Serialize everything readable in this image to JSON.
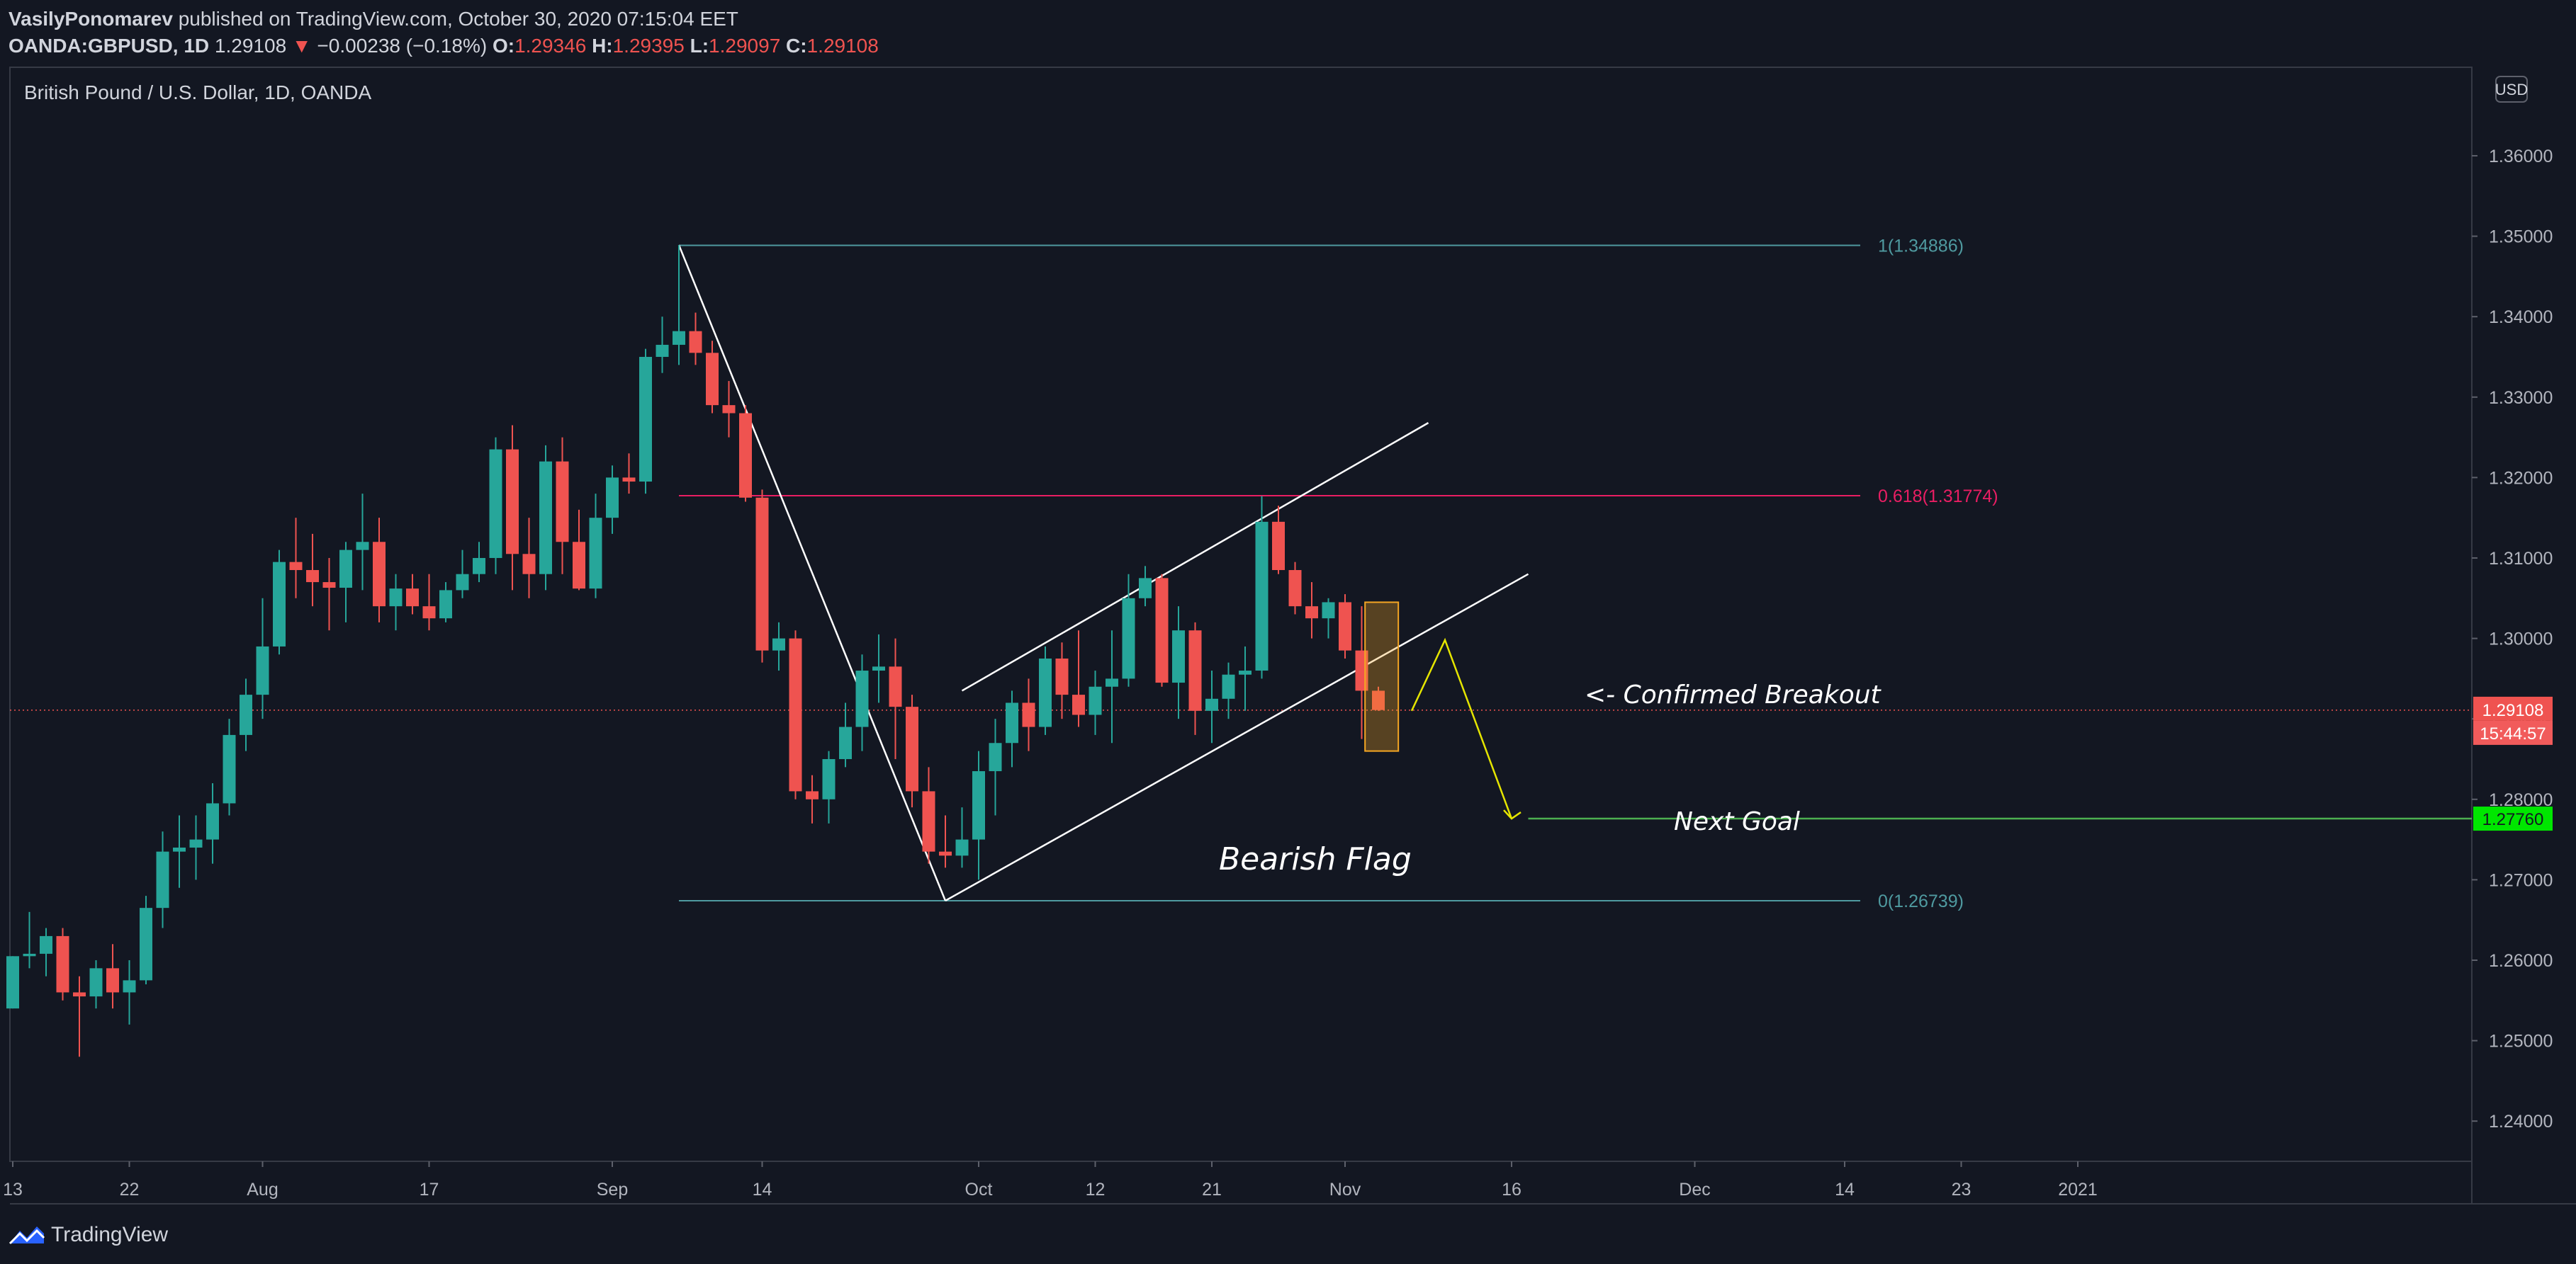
{
  "header": {
    "author": "VasilyPonomarev",
    "published_text": "published on TradingView.com, October 30, 2020 07:15:04 EET",
    "symbol": "OANDA:GBPUSD, 1D",
    "last": "1.29108",
    "change": "−0.00238 (−0.18%)",
    "o_label": "O:",
    "o_value": "1.29346",
    "h_label": "H:",
    "h_value": "1.29395",
    "l_label": "L:",
    "l_value": "1.29097",
    "c_label": "C:",
    "c_value": "1.29108"
  },
  "chart_title": "British Pound / U.S. Dollar, 1D, OANDA",
  "currency_badge": "USD",
  "footer": {
    "logo_text": "TradingView"
  },
  "colors": {
    "background": "#131722",
    "up": "#26a69a",
    "down": "#ef5350",
    "fib_teal": "#4f9aa0",
    "fib_pink": "#e91e63",
    "goal_green": "#4caf50",
    "badge_green": "#00e600",
    "arrow_yellow": "#e5e500",
    "highlight": "#f5a623"
  },
  "chart_data": {
    "type": "candlestick",
    "title": "British Pound / U.S. Dollar, 1D, OANDA",
    "ylim": [
      1.235,
      1.371
    ],
    "y_ticks": [
      "1.24000",
      "1.25000",
      "1.26000",
      "1.27000",
      "1.28000",
      "1.29000",
      "1.30000",
      "1.31000",
      "1.32000",
      "1.33000",
      "1.34000",
      "1.35000",
      "1.36000"
    ],
    "x_ticks": [
      {
        "label": "13",
        "i": 0
      },
      {
        "label": "22",
        "i": 7
      },
      {
        "label": "Aug",
        "i": 15
      },
      {
        "label": "17",
        "i": 25
      },
      {
        "label": "Sep",
        "i": 36
      },
      {
        "label": "14",
        "i": 45
      },
      {
        "label": "Oct",
        "i": 58
      },
      {
        "label": "12",
        "i": 65
      },
      {
        "label": "21",
        "i": 72
      },
      {
        "label": "Nov",
        "i": 80
      },
      {
        "label": "16",
        "i": 90
      },
      {
        "label": "Dec",
        "i": 101
      },
      {
        "label": "14",
        "i": 110
      },
      {
        "label": "23",
        "i": 117
      },
      {
        "label": "2021",
        "i": 124
      }
    ],
    "ohlc": [
      [
        1.254,
        1.2605,
        1.254,
        1.2605
      ],
      [
        1.2605,
        1.266,
        1.259,
        1.2608
      ],
      [
        1.2608,
        1.264,
        1.258,
        1.263
      ],
      [
        1.263,
        1.264,
        1.255,
        1.256
      ],
      [
        1.256,
        1.258,
        1.248,
        1.2555
      ],
      [
        1.2555,
        1.26,
        1.254,
        1.259
      ],
      [
        1.259,
        1.262,
        1.254,
        1.256
      ],
      [
        1.256,
        1.26,
        1.252,
        1.2575
      ],
      [
        1.2575,
        1.268,
        1.257,
        1.2665
      ],
      [
        1.2665,
        1.276,
        1.264,
        1.2735
      ],
      [
        1.2735,
        1.278,
        1.269,
        1.274
      ],
      [
        1.274,
        1.278,
        1.27,
        1.275
      ],
      [
        1.275,
        1.282,
        1.272,
        1.2795
      ],
      [
        1.2795,
        1.29,
        1.278,
        1.288
      ],
      [
        1.288,
        1.295,
        1.286,
        1.293
      ],
      [
        1.293,
        1.305,
        1.29,
        1.299
      ],
      [
        1.299,
        1.311,
        1.298,
        1.3095
      ],
      [
        1.3095,
        1.315,
        1.305,
        1.3085
      ],
      [
        1.3085,
        1.313,
        1.304,
        1.307
      ],
      [
        1.307,
        1.31,
        1.301,
        1.3063
      ],
      [
        1.3063,
        1.312,
        1.302,
        1.311
      ],
      [
        1.311,
        1.318,
        1.306,
        1.312
      ],
      [
        1.312,
        1.315,
        1.302,
        1.304
      ],
      [
        1.304,
        1.308,
        1.301,
        1.3062
      ],
      [
        1.3062,
        1.308,
        1.303,
        1.304
      ],
      [
        1.304,
        1.308,
        1.301,
        1.3025
      ],
      [
        1.3025,
        1.307,
        1.302,
        1.306
      ],
      [
        1.306,
        1.311,
        1.305,
        1.308
      ],
      [
        1.308,
        1.312,
        1.307,
        1.31
      ],
      [
        1.31,
        1.325,
        1.308,
        1.3235
      ],
      [
        1.3235,
        1.3265,
        1.306,
        1.3105
      ],
      [
        1.3105,
        1.315,
        1.305,
        1.308
      ],
      [
        1.308,
        1.324,
        1.306,
        1.322
      ],
      [
        1.322,
        1.325,
        1.308,
        1.312
      ],
      [
        1.312,
        1.316,
        1.306,
        1.3062
      ],
      [
        1.3062,
        1.318,
        1.305,
        1.315
      ],
      [
        1.315,
        1.3215,
        1.313,
        1.32
      ],
      [
        1.32,
        1.323,
        1.318,
        1.3195
      ],
      [
        1.3195,
        1.336,
        1.318,
        1.335
      ],
      [
        1.335,
        1.34,
        1.333,
        1.3365
      ],
      [
        1.3365,
        1.3489,
        1.334,
        1.3382
      ],
      [
        1.3382,
        1.3405,
        1.334,
        1.3355
      ],
      [
        1.3355,
        1.337,
        1.328,
        1.329
      ],
      [
        1.329,
        1.332,
        1.325,
        1.328
      ],
      [
        1.328,
        1.329,
        1.317,
        1.3175
      ],
      [
        1.3175,
        1.3185,
        1.297,
        1.2985
      ],
      [
        1.2985,
        1.302,
        1.296,
        1.3
      ],
      [
        1.3,
        1.301,
        1.28,
        1.281
      ],
      [
        1.281,
        1.283,
        1.277,
        1.28
      ],
      [
        1.28,
        1.286,
        1.277,
        1.285
      ],
      [
        1.285,
        1.292,
        1.284,
        1.289
      ],
      [
        1.289,
        1.298,
        1.286,
        1.296
      ],
      [
        1.296,
        1.3005,
        1.292,
        1.2965
      ],
      [
        1.2965,
        1.3,
        1.285,
        1.2915
      ],
      [
        1.2915,
        1.293,
        1.279,
        1.281
      ],
      [
        1.281,
        1.284,
        1.272,
        1.2735
      ],
      [
        1.2735,
        1.278,
        1.2715,
        1.273
      ],
      [
        1.273,
        1.279,
        1.2715,
        1.275
      ],
      [
        1.275,
        1.286,
        1.27,
        1.2835
      ],
      [
        1.2835,
        1.29,
        1.278,
        1.287
      ],
      [
        1.287,
        1.2935,
        1.284,
        1.292
      ],
      [
        1.292,
        1.295,
        1.286,
        1.289
      ],
      [
        1.289,
        1.299,
        1.288,
        1.2975
      ],
      [
        1.2975,
        1.2995,
        1.29,
        1.293
      ],
      [
        1.293,
        1.301,
        1.289,
        1.2905
      ],
      [
        1.2905,
        1.296,
        1.288,
        1.294
      ],
      [
        1.294,
        1.301,
        1.287,
        1.295
      ],
      [
        1.295,
        1.308,
        1.294,
        1.305
      ],
      [
        1.305,
        1.309,
        1.304,
        1.3075
      ],
      [
        1.3075,
        1.308,
        1.294,
        1.2945
      ],
      [
        1.2945,
        1.304,
        1.29,
        1.301
      ],
      [
        1.301,
        1.302,
        1.288,
        1.291
      ],
      [
        1.291,
        1.296,
        1.287,
        1.2925
      ],
      [
        1.2925,
        1.297,
        1.29,
        1.2955
      ],
      [
        1.2955,
        1.299,
        1.291,
        1.296
      ],
      [
        1.296,
        1.3177,
        1.295,
        1.3145
      ],
      [
        1.3145,
        1.3165,
        1.308,
        1.3085
      ],
      [
        1.3085,
        1.3095,
        1.303,
        1.304
      ],
      [
        1.304,
        1.307,
        1.3,
        1.3025
      ],
      [
        1.3025,
        1.305,
        1.3,
        1.3045
      ],
      [
        1.3045,
        1.3055,
        1.2975,
        1.2985
      ],
      [
        1.2985,
        1.304,
        1.2875,
        1.2935
      ],
      [
        1.2935,
        1.294,
        1.291,
        1.2911
      ]
    ],
    "fib": {
      "level_1": {
        "label": "1(1.34886)",
        "value": 1.34886
      },
      "level_0618": {
        "label": "0.618(1.31774)",
        "value": 1.31774
      },
      "level_0": {
        "label": "0(1.26739)",
        "value": 1.26739
      }
    },
    "drawings": {
      "pole": {
        "from": {
          "i": 40,
          "p": 1.3489
        },
        "to": {
          "i": 56,
          "p": 1.2674
        }
      },
      "flag_top": {
        "from": {
          "i": 57,
          "p": 1.2935
        },
        "to": {
          "i": 85,
          "p": 1.3268
        }
      },
      "flag_bottom": {
        "from": {
          "i": 56,
          "p": 1.2674
        },
        "to": {
          "i": 91,
          "p": 1.308
        }
      },
      "zigzag": [
        {
          "i": 84,
          "p": 1.291
        },
        {
          "i": 86,
          "p": 1.2998
        },
        {
          "i": 90,
          "p": 1.2776
        }
      ],
      "highlight_box": {
        "i0": 81.2,
        "i1": 83.2,
        "p0": 1.3045,
        "p1": 1.286
      }
    },
    "current_price": {
      "value": 1.29108,
      "label": "1.29108",
      "countdown": "15:44:57"
    },
    "target": {
      "value": 1.2776,
      "label": "1.27760",
      "from_i": 91
    }
  },
  "annotations": {
    "bearish_flag": "Bearish Flag",
    "confirmed_breakout": "<- Confirmed Breakout",
    "next_goal": "Next Goal"
  }
}
